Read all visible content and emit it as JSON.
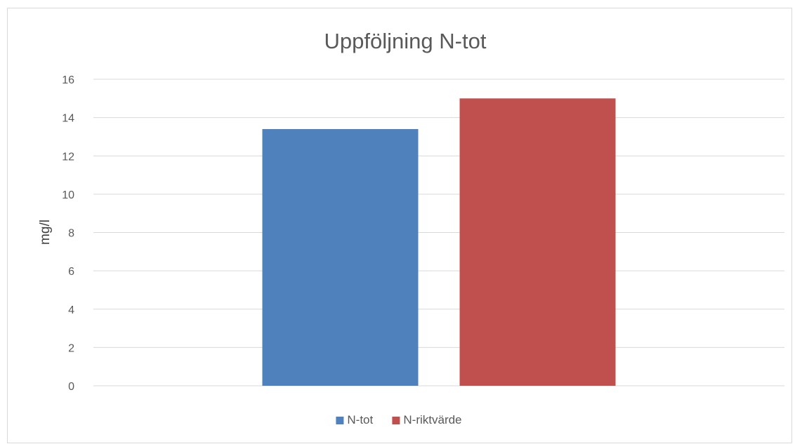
{
  "chart_data": {
    "type": "bar",
    "title": "Uppföljning N-tot",
    "xlabel": "",
    "ylabel": "mg/l",
    "categories": [
      ""
    ],
    "series": [
      {
        "name": "N-tot",
        "values": [
          13.4
        ],
        "color": "#4f81bd"
      },
      {
        "name": "N-riktvärde",
        "values": [
          15
        ],
        "color": "#c0504d"
      }
    ],
    "ylim": [
      0,
      16
    ],
    "yticks": [
      0,
      2,
      4,
      6,
      8,
      10,
      12,
      14,
      16
    ],
    "grid": true,
    "legend_position": "bottom"
  }
}
